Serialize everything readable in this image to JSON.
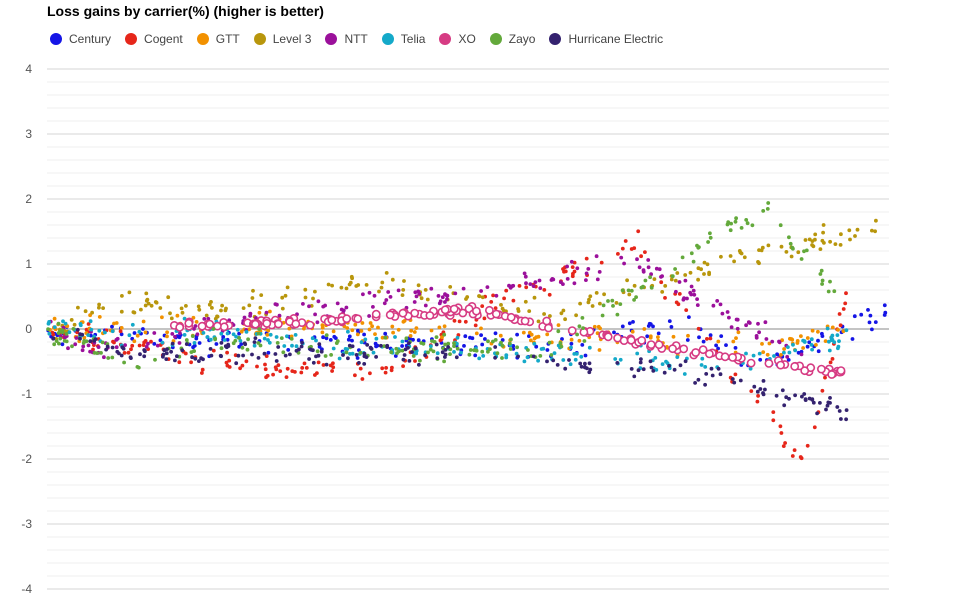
{
  "chart_data": {
    "type": "scatter",
    "title": "Loss gains by carrier(%) (higher is better)",
    "xlabel": "",
    "ylabel": "",
    "ylim": [
      -4,
      4
    ],
    "yticks": [
      4,
      3,
      2,
      1,
      0,
      -1,
      -2,
      -3,
      -4
    ],
    "ytick_labels": [
      "4",
      "3",
      "2",
      "1",
      "0",
      "-1",
      "-2",
      "-3",
      "-4"
    ],
    "grid": true,
    "legend_position": "top-left",
    "series": [
      {
        "name": "Century",
        "color": "#1515e6",
        "trend": [
          [
            0,
            0.0
          ],
          [
            0.2,
            -0.2
          ],
          [
            0.4,
            -0.2
          ],
          [
            0.6,
            -0.3
          ],
          [
            0.75,
            0.1
          ],
          [
            0.85,
            -0.6
          ],
          [
            1.0,
            0.3
          ]
        ]
      },
      {
        "name": "Cogent",
        "color": "#e6261a",
        "trend": [
          [
            0,
            0.0
          ],
          [
            0.2,
            -0.5
          ],
          [
            0.4,
            -0.7
          ],
          [
            0.55,
            0.5
          ],
          [
            0.7,
            1.3
          ],
          [
            0.9,
            -2.1
          ],
          [
            0.95,
            0.5
          ]
        ]
      },
      {
        "name": "GTT",
        "color": "#f29100",
        "trend": [
          [
            0,
            0.0
          ],
          [
            0.3,
            0.05
          ],
          [
            0.6,
            -0.1
          ],
          [
            0.85,
            -0.3
          ],
          [
            0.95,
            0.0
          ]
        ]
      },
      {
        "name": "Level 3",
        "color": "#b8960c",
        "trend": [
          [
            0,
            0.0
          ],
          [
            0.08,
            0.4
          ],
          [
            0.2,
            0.3
          ],
          [
            0.4,
            0.7
          ],
          [
            0.6,
            0.2
          ],
          [
            0.85,
            1.2
          ],
          [
            1.0,
            1.6
          ]
        ]
      },
      {
        "name": "NTT",
        "color": "#9b109b",
        "trend": [
          [
            0,
            0.0
          ],
          [
            0.05,
            -0.3
          ],
          [
            0.3,
            0.3
          ],
          [
            0.5,
            0.6
          ],
          [
            0.7,
            1.0
          ],
          [
            0.9,
            -0.4
          ]
        ]
      },
      {
        "name": "Telia",
        "color": "#14a9c9",
        "trend": [
          [
            0,
            0.0
          ],
          [
            0.2,
            -0.1
          ],
          [
            0.4,
            -0.3
          ],
          [
            0.6,
            -0.4
          ],
          [
            0.8,
            -0.6
          ],
          [
            0.95,
            -0.1
          ]
        ]
      },
      {
        "name": "XO",
        "color": "#d63b83",
        "trend": [
          [
            0.15,
            0.05
          ],
          [
            0.3,
            0.1
          ],
          [
            0.5,
            0.3
          ],
          [
            0.7,
            -0.2
          ],
          [
            0.85,
            -0.5
          ],
          [
            0.95,
            -0.7
          ]
        ]
      },
      {
        "name": "Zayo",
        "color": "#63a93b",
        "trend": [
          [
            0,
            0.0
          ],
          [
            0.1,
            -0.5
          ],
          [
            0.2,
            -0.2
          ],
          [
            0.4,
            -0.3
          ],
          [
            0.6,
            -0.3
          ],
          [
            0.85,
            1.9
          ],
          [
            0.95,
            0.3
          ]
        ]
      },
      {
        "name": "Hurricane Electric",
        "color": "#34226f",
        "trend": [
          [
            0,
            0.0
          ],
          [
            0.1,
            -0.4
          ],
          [
            0.3,
            -0.3
          ],
          [
            0.5,
            -0.4
          ],
          [
            0.8,
            -0.7
          ],
          [
            0.95,
            -1.3
          ]
        ]
      }
    ]
  }
}
